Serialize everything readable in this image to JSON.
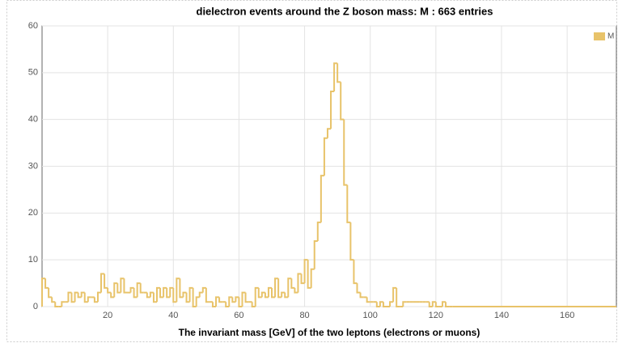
{
  "chart_data": {
    "type": "histogram",
    "title": "dielectron events around the Z boson mass: M : 663 entries",
    "x_label": "The invariant mass [GeV] of the two leptons (electrons or muons)",
    "series": [
      {
        "name": "M",
        "color": "#e8c36a",
        "bins": [
          0,
          1,
          2,
          3,
          4,
          5,
          6,
          7,
          8,
          9,
          10,
          11,
          12,
          13,
          14,
          15,
          16,
          17,
          18,
          19,
          20,
          21,
          22,
          23,
          24,
          25,
          26,
          27,
          28,
          29,
          30,
          31,
          32,
          33,
          34,
          35,
          36,
          37,
          38,
          39,
          40,
          41,
          42,
          43,
          44,
          45,
          46,
          47,
          48,
          49,
          50,
          51,
          52,
          53,
          54,
          55,
          56,
          57,
          58,
          59,
          60,
          61,
          62,
          63,
          64,
          65,
          66,
          67,
          68,
          69,
          70,
          71,
          72,
          73,
          74,
          75,
          76,
          77,
          78,
          79,
          80,
          81,
          82,
          83,
          84,
          85,
          86,
          87,
          88,
          89,
          90,
          91,
          92,
          93,
          94,
          95,
          96,
          97,
          98,
          99,
          100,
          101,
          102,
          103,
          104,
          105,
          106,
          107,
          108,
          109,
          110,
          111,
          112,
          113,
          114,
          115,
          116,
          117,
          118,
          119,
          120,
          121,
          122,
          123,
          124,
          125
        ],
        "values": [
          6,
          4,
          2,
          1,
          0,
          0,
          1,
          1,
          3,
          1,
          3,
          2,
          3,
          1,
          2,
          2,
          1,
          3,
          7,
          4,
          3,
          2,
          5,
          3,
          6,
          3,
          3,
          4,
          2,
          5,
          3,
          3,
          2,
          3,
          1,
          4,
          2,
          4,
          2,
          4,
          1,
          6,
          2,
          3,
          1,
          4,
          0,
          2,
          3,
          4,
          1,
          1,
          0,
          2,
          1,
          1,
          0,
          2,
          1,
          2,
          0,
          3,
          1,
          1,
          0,
          4,
          2,
          3,
          2,
          4,
          2,
          6,
          2,
          3,
          2,
          6,
          4,
          3,
          7,
          5,
          10,
          4,
          8,
          14,
          18,
          28,
          36,
          38,
          46,
          52,
          48,
          40,
          26,
          18,
          10,
          5,
          3,
          2,
          2,
          1,
          1,
          1,
          0,
          1,
          0,
          0,
          1,
          4,
          0,
          0,
          1,
          1,
          1,
          1,
          1,
          1,
          1,
          1,
          0,
          1,
          0,
          0,
          1,
          0,
          0
        ]
      }
    ],
    "xlim": [
      0,
      175
    ],
    "xticks": [
      20,
      40,
      60,
      80,
      100,
      120,
      140,
      160
    ],
    "ylim": [
      0,
      60
    ],
    "yticks": [
      0,
      10,
      20,
      30,
      40,
      50,
      60
    ],
    "grid": true
  }
}
